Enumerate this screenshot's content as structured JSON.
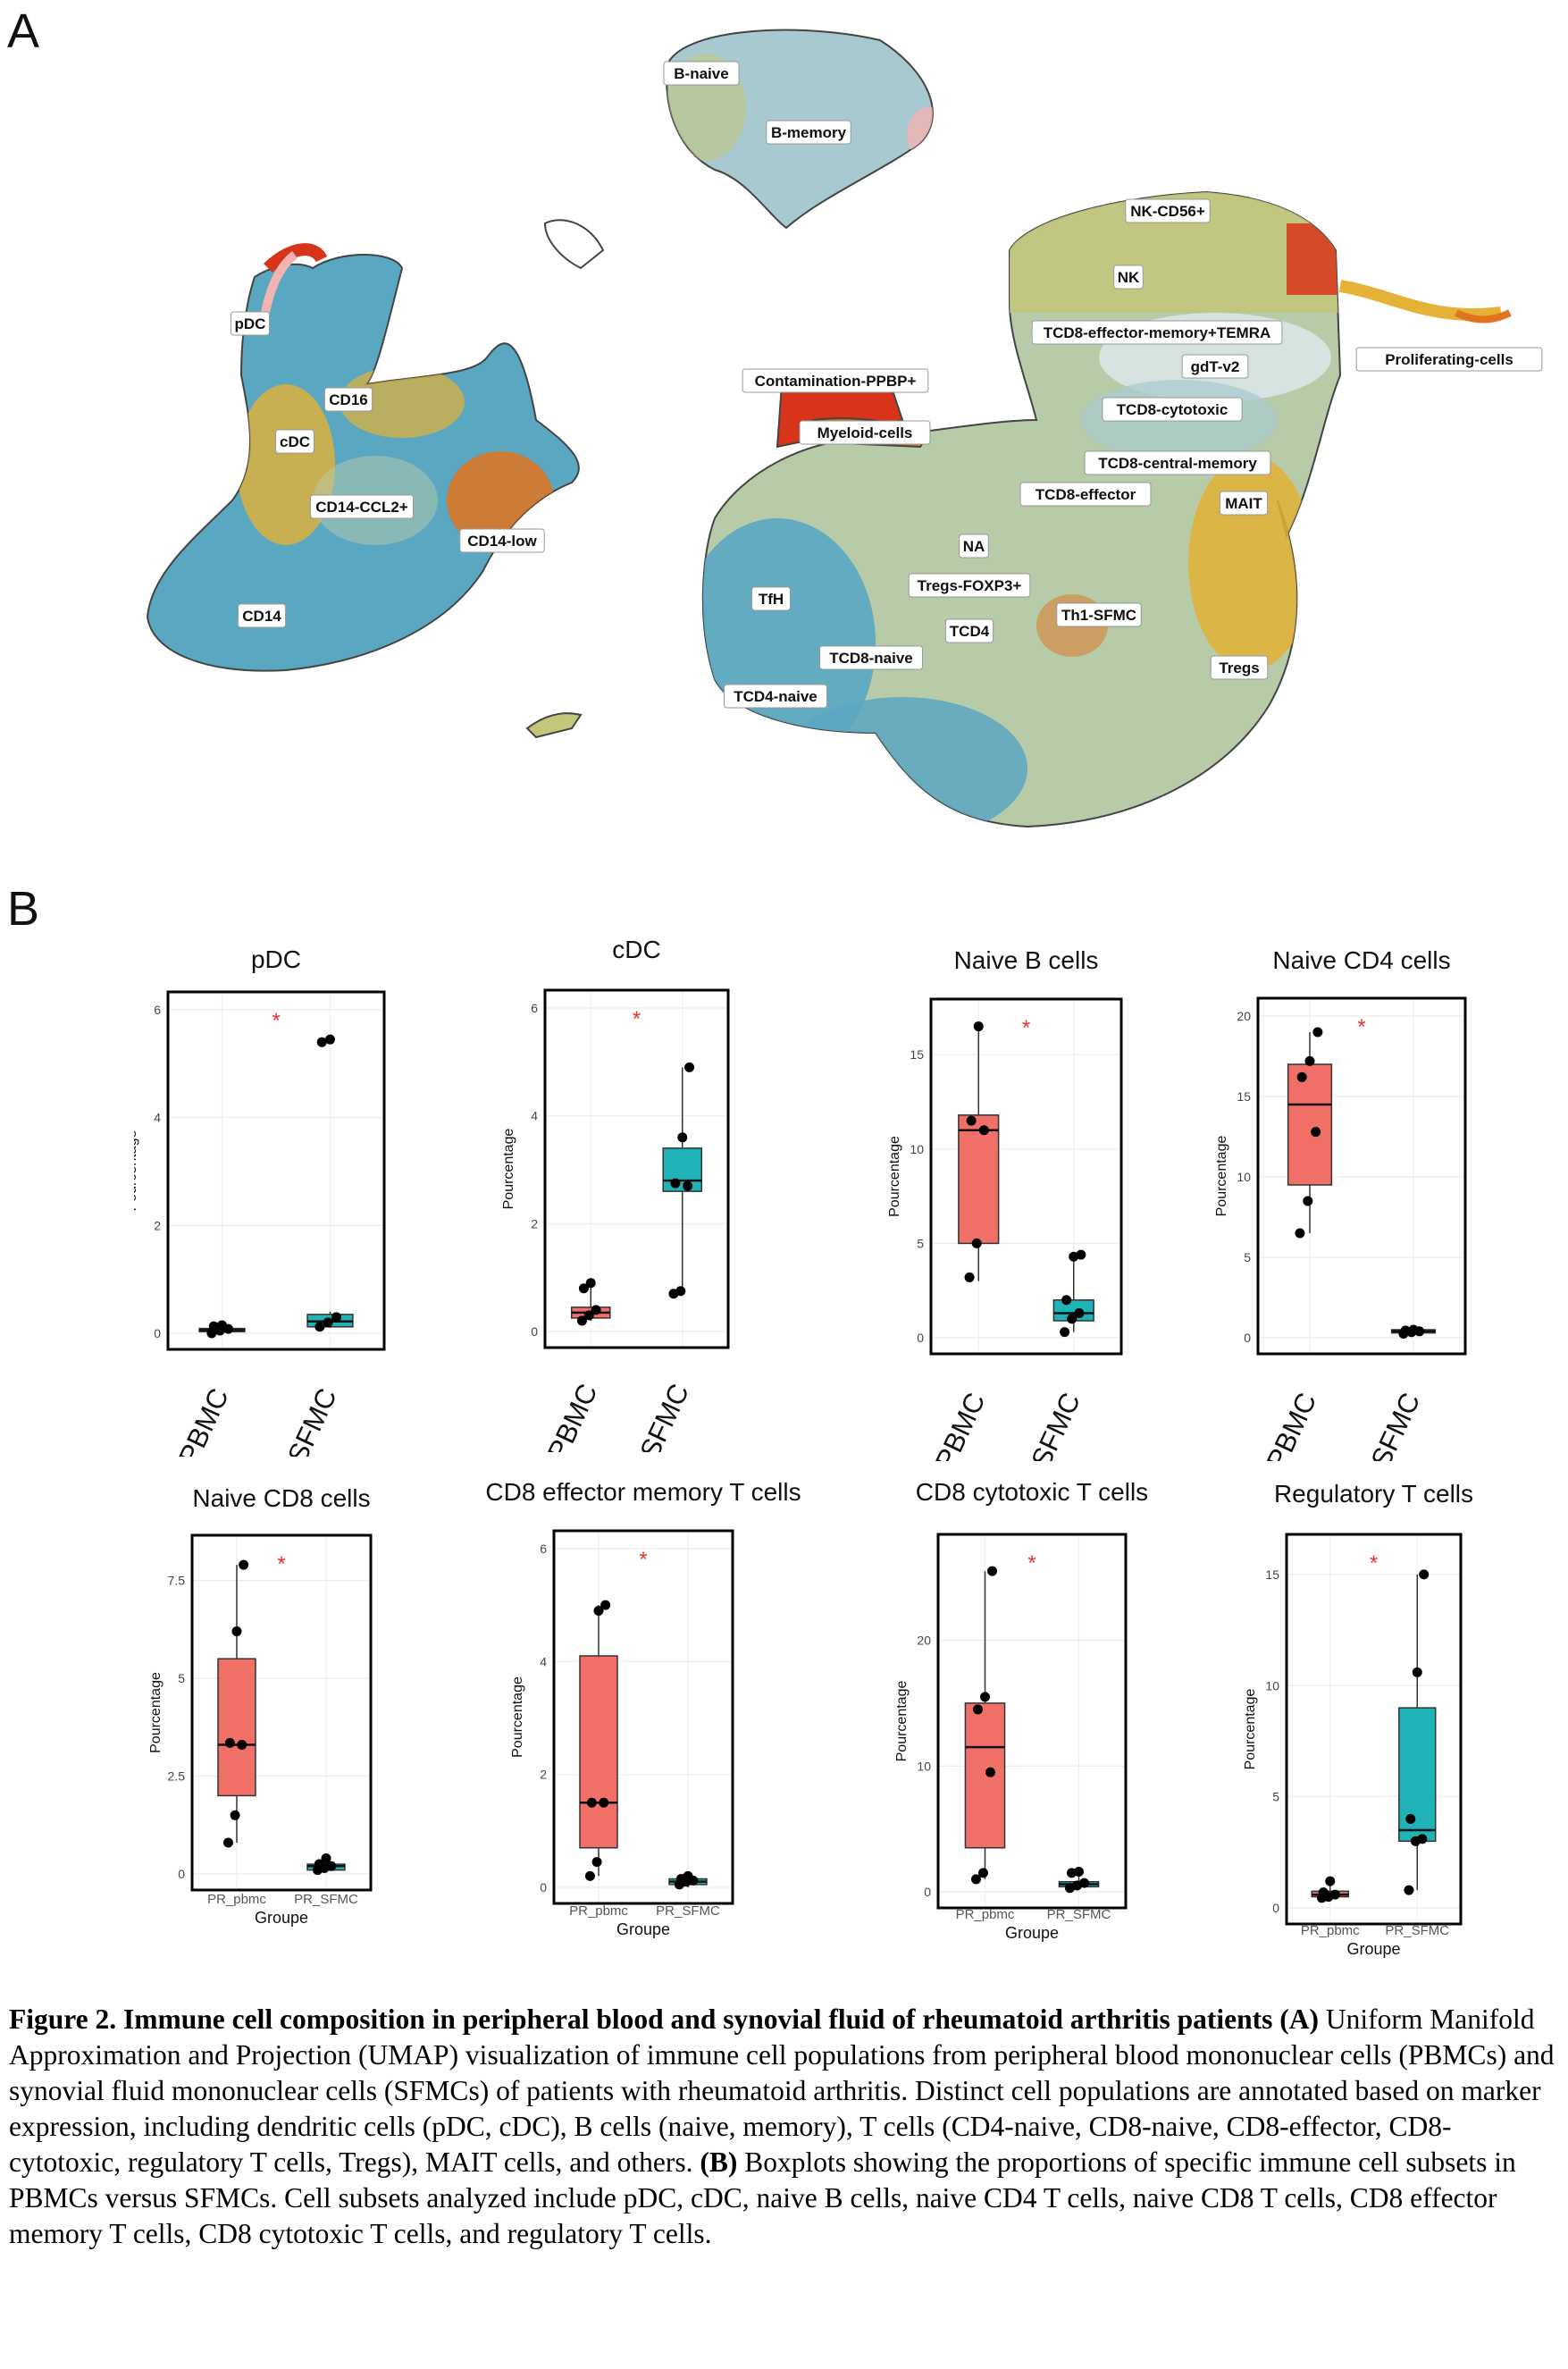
{
  "panel_a": {
    "letter": "A",
    "clusters": [
      {
        "name": "B-naive"
      },
      {
        "name": "B-memory"
      },
      {
        "name": "NK-CD56+"
      },
      {
        "name": "NK"
      },
      {
        "name": "TCD8-effector-memory+TEMRA"
      },
      {
        "name": "gdT-v2"
      },
      {
        "name": "Proliferating-cells"
      },
      {
        "name": "TCD8-cytotoxic"
      },
      {
        "name": "TCD8-central-memory"
      },
      {
        "name": "TCD8-effector"
      },
      {
        "name": "MAIT"
      },
      {
        "name": "Contamination-PPBP+"
      },
      {
        "name": "Myeloid-cells"
      },
      {
        "name": "NA"
      },
      {
        "name": "Tregs-FOXP3+"
      },
      {
        "name": "TCD4"
      },
      {
        "name": "Th1-SFMC"
      },
      {
        "name": "TfH"
      },
      {
        "name": "TCD8-naive"
      },
      {
        "name": "TCD4-naive"
      },
      {
        "name": "Tregs"
      },
      {
        "name": "pDC"
      },
      {
        "name": "CD16"
      },
      {
        "name": "cDC"
      },
      {
        "name": "CD14-CCL2+"
      },
      {
        "name": "CD14-low"
      },
      {
        "name": "CD14"
      }
    ],
    "colors": {
      "teal": "#5aa7c2",
      "sage": "#b7cba9",
      "olive": "#c3c77a",
      "gold": "#e3b236",
      "orange": "#e0741f",
      "red": "#d8341a",
      "pink": "#f2b3b3"
    }
  },
  "panel_b": {
    "letter": "B"
  },
  "chart_data": [
    {
      "type": "box",
      "title": "pDC",
      "ylabel": "Pourcentage",
      "xlabel": "",
      "categories": [
        "PBMC",
        "SFMC"
      ],
      "ylim": [
        0,
        6
      ],
      "yticks": [
        0,
        2,
        4,
        6
      ],
      "significance": "*",
      "series": [
        {
          "group": "PBMC",
          "color": "#f07067",
          "box": {
            "q1": 0.03,
            "median": 0.06,
            "q3": 0.09,
            "min": 0.0,
            "max": 0.15
          },
          "points": [
            0.0,
            0.05,
            0.08,
            0.13,
            0.15
          ]
        },
        {
          "group": "SFMC",
          "color": "#1fb3b8",
          "box": {
            "q1": 0.12,
            "median": 0.22,
            "q3": 0.35,
            "min": 0.1,
            "max": 0.4
          },
          "points": [
            0.12,
            0.2,
            0.3,
            5.4,
            5.45
          ]
        }
      ]
    },
    {
      "type": "box",
      "title": "cDC",
      "ylabel": "Pourcentage",
      "xlabel": "",
      "categories": [
        "PBMC",
        "SFMC"
      ],
      "ylim": [
        0,
        6
      ],
      "yticks": [
        0,
        2,
        4,
        6
      ],
      "significance": "*",
      "series": [
        {
          "group": "PBMC",
          "color": "#f07067",
          "box": {
            "q1": 0.25,
            "median": 0.35,
            "q3": 0.45,
            "min": 0.2,
            "max": 0.9
          },
          "points": [
            0.2,
            0.3,
            0.4,
            0.8,
            0.9
          ]
        },
        {
          "group": "SFMC",
          "color": "#1fb3b8",
          "box": {
            "q1": 2.6,
            "median": 2.8,
            "q3": 3.4,
            "min": 0.7,
            "max": 4.9
          },
          "points": [
            0.7,
            0.75,
            2.7,
            2.75,
            3.6,
            4.9
          ]
        }
      ]
    },
    {
      "type": "box",
      "title": "Naive B cells",
      "ylabel": "Pourcentage",
      "xlabel": "",
      "categories": [
        "PBMC",
        "SFMC"
      ],
      "ylim": [
        0,
        17
      ],
      "yticks": [
        0,
        5,
        10,
        15
      ],
      "significance": "*",
      "series": [
        {
          "group": "PBMC",
          "color": "#f07067",
          "box": {
            "q1": 5.0,
            "median": 11.0,
            "q3": 11.8,
            "min": 3.0,
            "max": 16.5
          },
          "points": [
            3.2,
            5.0,
            11.0,
            11.5,
            16.5
          ]
        },
        {
          "group": "SFMC",
          "color": "#1fb3b8",
          "box": {
            "q1": 0.9,
            "median": 1.3,
            "q3": 2.0,
            "min": 0.3,
            "max": 4.5
          },
          "points": [
            0.3,
            1.0,
            1.3,
            2.0,
            4.3,
            4.4
          ]
        }
      ]
    },
    {
      "type": "box",
      "title": "Naive CD4 cells",
      "ylabel": "Pourcentage",
      "xlabel": "",
      "categories": [
        "PBMC",
        "SFMC"
      ],
      "ylim": [
        0,
        20
      ],
      "yticks": [
        0,
        5,
        10,
        15,
        20
      ],
      "significance": "*",
      "series": [
        {
          "group": "PBMC",
          "color": "#f07067",
          "box": {
            "q1": 9.5,
            "median": 14.5,
            "q3": 17.0,
            "min": 6.5,
            "max": 19.0
          },
          "points": [
            6.5,
            8.5,
            12.8,
            16.2,
            17.2,
            19.0
          ]
        },
        {
          "group": "SFMC",
          "color": "#1fb3b8",
          "box": {
            "q1": 0.3,
            "median": 0.4,
            "q3": 0.5,
            "min": 0.2,
            "max": 0.55
          },
          "points": [
            0.25,
            0.35,
            0.4,
            0.45,
            0.5
          ]
        }
      ]
    },
    {
      "type": "box",
      "title": "Naive CD8 cells",
      "ylabel": "Pourcentage",
      "xlabel": "Groupe",
      "categories": [
        "PR_pbmc",
        "PR_SFMC"
      ],
      "ylim": [
        0,
        8.2
      ],
      "yticks": [
        0.0,
        2.5,
        5.0,
        7.5
      ],
      "significance": "*",
      "series": [
        {
          "group": "PR_pbmc",
          "color": "#f07067",
          "box": {
            "q1": 2.0,
            "median": 3.3,
            "q3": 5.5,
            "min": 0.8,
            "max": 7.9
          },
          "points": [
            0.8,
            1.5,
            3.3,
            3.35,
            6.2,
            7.9
          ]
        },
        {
          "group": "PR_SFMC",
          "color": "#1fb3b8",
          "box": {
            "q1": 0.1,
            "median": 0.2,
            "q3": 0.25,
            "min": 0.05,
            "max": 0.4
          },
          "points": [
            0.1,
            0.15,
            0.2,
            0.25,
            0.4
          ]
        }
      ]
    },
    {
      "type": "box",
      "title": "CD8 effector memory T cells",
      "ylabel": "Pourcentage",
      "xlabel": "Groupe",
      "categories": [
        "PR_pbmc",
        "PR_SFMC"
      ],
      "ylim": [
        0,
        6
      ],
      "yticks": [
        0,
        2,
        4,
        6
      ],
      "significance": "*",
      "series": [
        {
          "group": "PR_pbmc",
          "color": "#f07067",
          "box": {
            "q1": 0.7,
            "median": 1.5,
            "q3": 4.1,
            "min": 0.2,
            "max": 5.0
          },
          "points": [
            0.2,
            0.45,
            1.5,
            1.5,
            4.9,
            5.0
          ]
        },
        {
          "group": "PR_SFMC",
          "color": "#1fb3b8",
          "box": {
            "q1": 0.05,
            "median": 0.1,
            "q3": 0.15,
            "min": 0.0,
            "max": 0.2
          },
          "points": [
            0.05,
            0.1,
            0.12,
            0.15,
            0.2
          ]
        }
      ]
    },
    {
      "type": "box",
      "title": "CD8 cytotoxic T cells",
      "ylabel": "Pourcentage",
      "xlabel": "Groupe",
      "categories": [
        "PR_pbmc",
        "PR_SFMC"
      ],
      "ylim": [
        0,
        27
      ],
      "yticks": [
        0,
        10,
        20
      ],
      "significance": "*",
      "series": [
        {
          "group": "PR_pbmc",
          "color": "#f07067",
          "box": {
            "q1": 3.5,
            "median": 11.5,
            "q3": 15.0,
            "min": 1.0,
            "max": 25.5
          },
          "points": [
            1.0,
            1.5,
            9.5,
            14.5,
            15.5,
            25.5
          ]
        },
        {
          "group": "PR_SFMC",
          "color": "#1fb3b8",
          "box": {
            "q1": 0.4,
            "median": 0.6,
            "q3": 0.8,
            "min": 0.2,
            "max": 1.5
          },
          "points": [
            0.3,
            0.5,
            0.7,
            1.5,
            1.6
          ]
        }
      ]
    },
    {
      "type": "box",
      "title": "Regulatory T cells",
      "ylabel": "Pourcentage",
      "xlabel": "Groupe",
      "categories": [
        "PR_pbmc",
        "PR_SFMC"
      ],
      "ylim": [
        0,
        16
      ],
      "yticks": [
        0,
        5,
        10,
        15
      ],
      "significance": "*",
      "series": [
        {
          "group": "PR_pbmc",
          "color": "#f07067",
          "box": {
            "q1": 0.5,
            "median": 0.6,
            "q3": 0.75,
            "min": 0.4,
            "max": 1.2
          },
          "points": [
            0.45,
            0.5,
            0.6,
            0.7,
            1.2
          ]
        },
        {
          "group": "PR_SFMC",
          "color": "#1fb3b8",
          "box": {
            "q1": 3.0,
            "median": 3.5,
            "q3": 9.0,
            "min": 0.8,
            "max": 15.0
          },
          "points": [
            0.8,
            3.0,
            3.1,
            4.0,
            10.6,
            15.0
          ]
        }
      ]
    }
  ],
  "caption": {
    "bold_text": "Figure 2. Immune cell composition in peripheral blood and synovial fluid of rheumatoid arthritis patients (A)",
    "text_1": " Uniform Manifold Approximation and Projection (UMAP) visualization of immune cell populations from peripheral blood mononuclear cells (PBMCs) and synovial fluid mononuclear cells (SFMCs) of patients with rheumatoid arthritis. Distinct cell populations are annotated based on marker expression, including dendritic cells (pDC, cDC), B cells (naive, memory), T cells (CD4-naive, CD8-naive, CD8-effector, CD8-cytotoxic, regulatory T cells, Tregs), MAIT cells, and others. ",
    "bold_b": "(B)",
    "text_2": " Boxplots showing the proportions of specific immune cell subsets in PBMCs versus SFMCs. Cell subsets analyzed include pDC, cDC, naive B cells, naive CD4 T cells, naive CD8 T cells, CD8 effector memory T cells, CD8 cytotoxic T cells, and regulatory T cells."
  }
}
